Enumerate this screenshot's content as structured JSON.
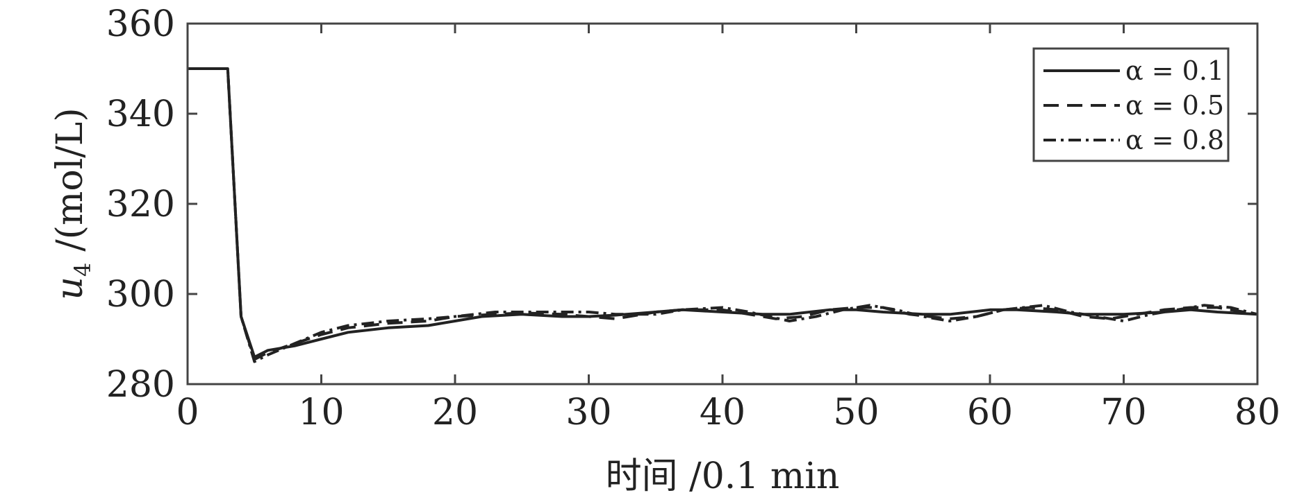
{
  "chart_data": {
    "type": "line",
    "xlabel": "时间 /0.1 min",
    "ylabel_main": "u",
    "ylabel_sub": "4",
    "ylabel_unit": "/(mol/L)",
    "xlim": [
      0,
      80
    ],
    "ylim": [
      280,
      360
    ],
    "xticks": [
      0,
      10,
      20,
      30,
      40,
      50,
      60,
      70,
      80
    ],
    "yticks": [
      280,
      300,
      320,
      340,
      360
    ],
    "grid": false,
    "legend_position": "top-right",
    "series": [
      {
        "name": "α = 0.1",
        "dash": "solid",
        "x": [
          0,
          3,
          4,
          5,
          6,
          8,
          10,
          12,
          15,
          18,
          20,
          22,
          25,
          28,
          30,
          32,
          35,
          37,
          40,
          43,
          45,
          48,
          50,
          52,
          55,
          57,
          60,
          62,
          65,
          67,
          70,
          73,
          75,
          77,
          80
        ],
        "y": [
          350,
          350,
          295,
          286,
          287.5,
          288.5,
          290,
          291.5,
          292.5,
          293,
          294,
          295,
          295.5,
          295,
          295,
          295.3,
          296,
          296.5,
          296,
          295.5,
          295.5,
          296.5,
          296.5,
          296,
          295.5,
          295.5,
          296.5,
          296.5,
          296,
          295.5,
          295.5,
          296,
          296.5,
          296,
          295.5
        ]
      },
      {
        "name": "α = 0.5",
        "dash": "dashed",
        "x": [
          0,
          3,
          4,
          5,
          6,
          8,
          10,
          12,
          15,
          18,
          20,
          23,
          25,
          28,
          30,
          32,
          35,
          37,
          40,
          42,
          44,
          46,
          48,
          50,
          52,
          54,
          57,
          59,
          61,
          63,
          65,
          67,
          69,
          71,
          73,
          75,
          77,
          79,
          80
        ],
        "y": [
          350,
          350,
          295,
          285.5,
          287,
          289,
          291,
          292.5,
          293.5,
          294,
          295,
          295.5,
          295.8,
          295.5,
          295,
          294.5,
          296,
          296.5,
          296.5,
          295.5,
          294.5,
          295,
          296.5,
          297,
          297,
          295.5,
          294.5,
          295,
          296.5,
          297,
          296.5,
          295,
          294.5,
          295.5,
          296.5,
          297,
          297,
          296,
          295.5
        ]
      },
      {
        "name": "α = 0.8",
        "dash": "dashdot",
        "x": [
          0,
          3,
          4,
          5,
          6,
          8,
          10,
          12,
          15,
          18,
          20,
          23,
          25,
          28,
          30,
          32,
          35,
          37,
          40,
          42,
          45,
          47,
          49,
          51,
          53,
          55,
          57,
          59,
          61,
          64,
          66,
          68,
          70,
          72,
          74,
          76,
          78,
          80
        ],
        "y": [
          350,
          350,
          295,
          285,
          286.5,
          289,
          291.5,
          293,
          294,
          294.5,
          295,
          296,
          296,
          296,
          296,
          295.5,
          295.5,
          296.5,
          297,
          296,
          294,
          295,
          296.5,
          297.5,
          296.5,
          295,
          294,
          295,
          296.5,
          297.5,
          296,
          295,
          294,
          295.5,
          296.5,
          297.5,
          297,
          295.5
        ]
      }
    ]
  }
}
